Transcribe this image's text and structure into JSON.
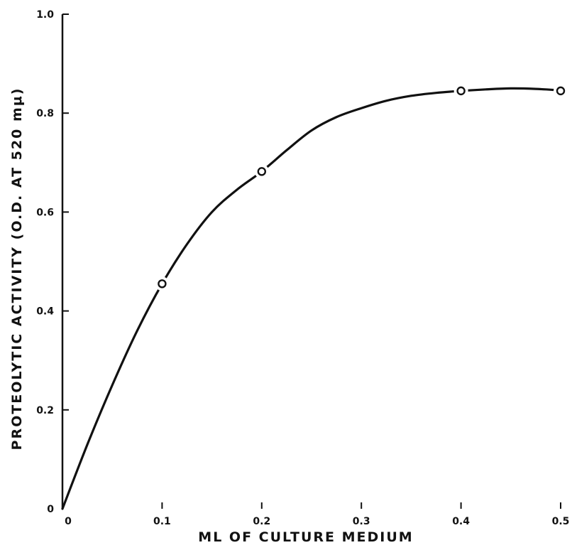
{
  "chart_data": {
    "type": "line",
    "title": "",
    "xlabel": "ML OF CULTURE MEDIUM",
    "ylabel": "PROTEOLYTIC ACTIVITY (O.D. AT 520 mμ)",
    "xlim": [
      0,
      0.5
    ],
    "ylim": [
      0,
      1.0
    ],
    "x_ticks": [
      0,
      0.1,
      0.2,
      0.3,
      0.4,
      0.5
    ],
    "x_tick_labels": [
      "0",
      "0.1",
      "0.2",
      "0.3",
      "0.4",
      "0.5"
    ],
    "y_ticks": [
      0,
      0.2,
      0.4,
      0.6,
      0.8,
      1.0
    ],
    "y_tick_labels": [
      "0",
      "0.2",
      "0.4",
      "0.6",
      "0.8",
      "1.0"
    ],
    "grid": false,
    "legend": "none",
    "series": [
      {
        "marker": "open-circle",
        "points": [
          {
            "x": 0.1,
            "y": 0.455
          },
          {
            "x": 0.2,
            "y": 0.682
          },
          {
            "x": 0.4,
            "y": 0.845
          },
          {
            "x": 0.5,
            "y": 0.845
          }
        ],
        "fitted_curve": {
          "x": [
            0,
            0.025,
            0.05,
            0.075,
            0.1,
            0.125,
            0.15,
            0.175,
            0.2,
            0.225,
            0.25,
            0.275,
            0.3,
            0.325,
            0.35,
            0.375,
            0.4,
            0.425,
            0.45,
            0.475,
            0.5
          ],
          "y": [
            0,
            0.13,
            0.25,
            0.36,
            0.455,
            0.535,
            0.6,
            0.645,
            0.682,
            0.725,
            0.765,
            0.792,
            0.81,
            0.825,
            0.835,
            0.841,
            0.845,
            0.848,
            0.85,
            0.849,
            0.846
          ]
        }
      }
    ]
  }
}
